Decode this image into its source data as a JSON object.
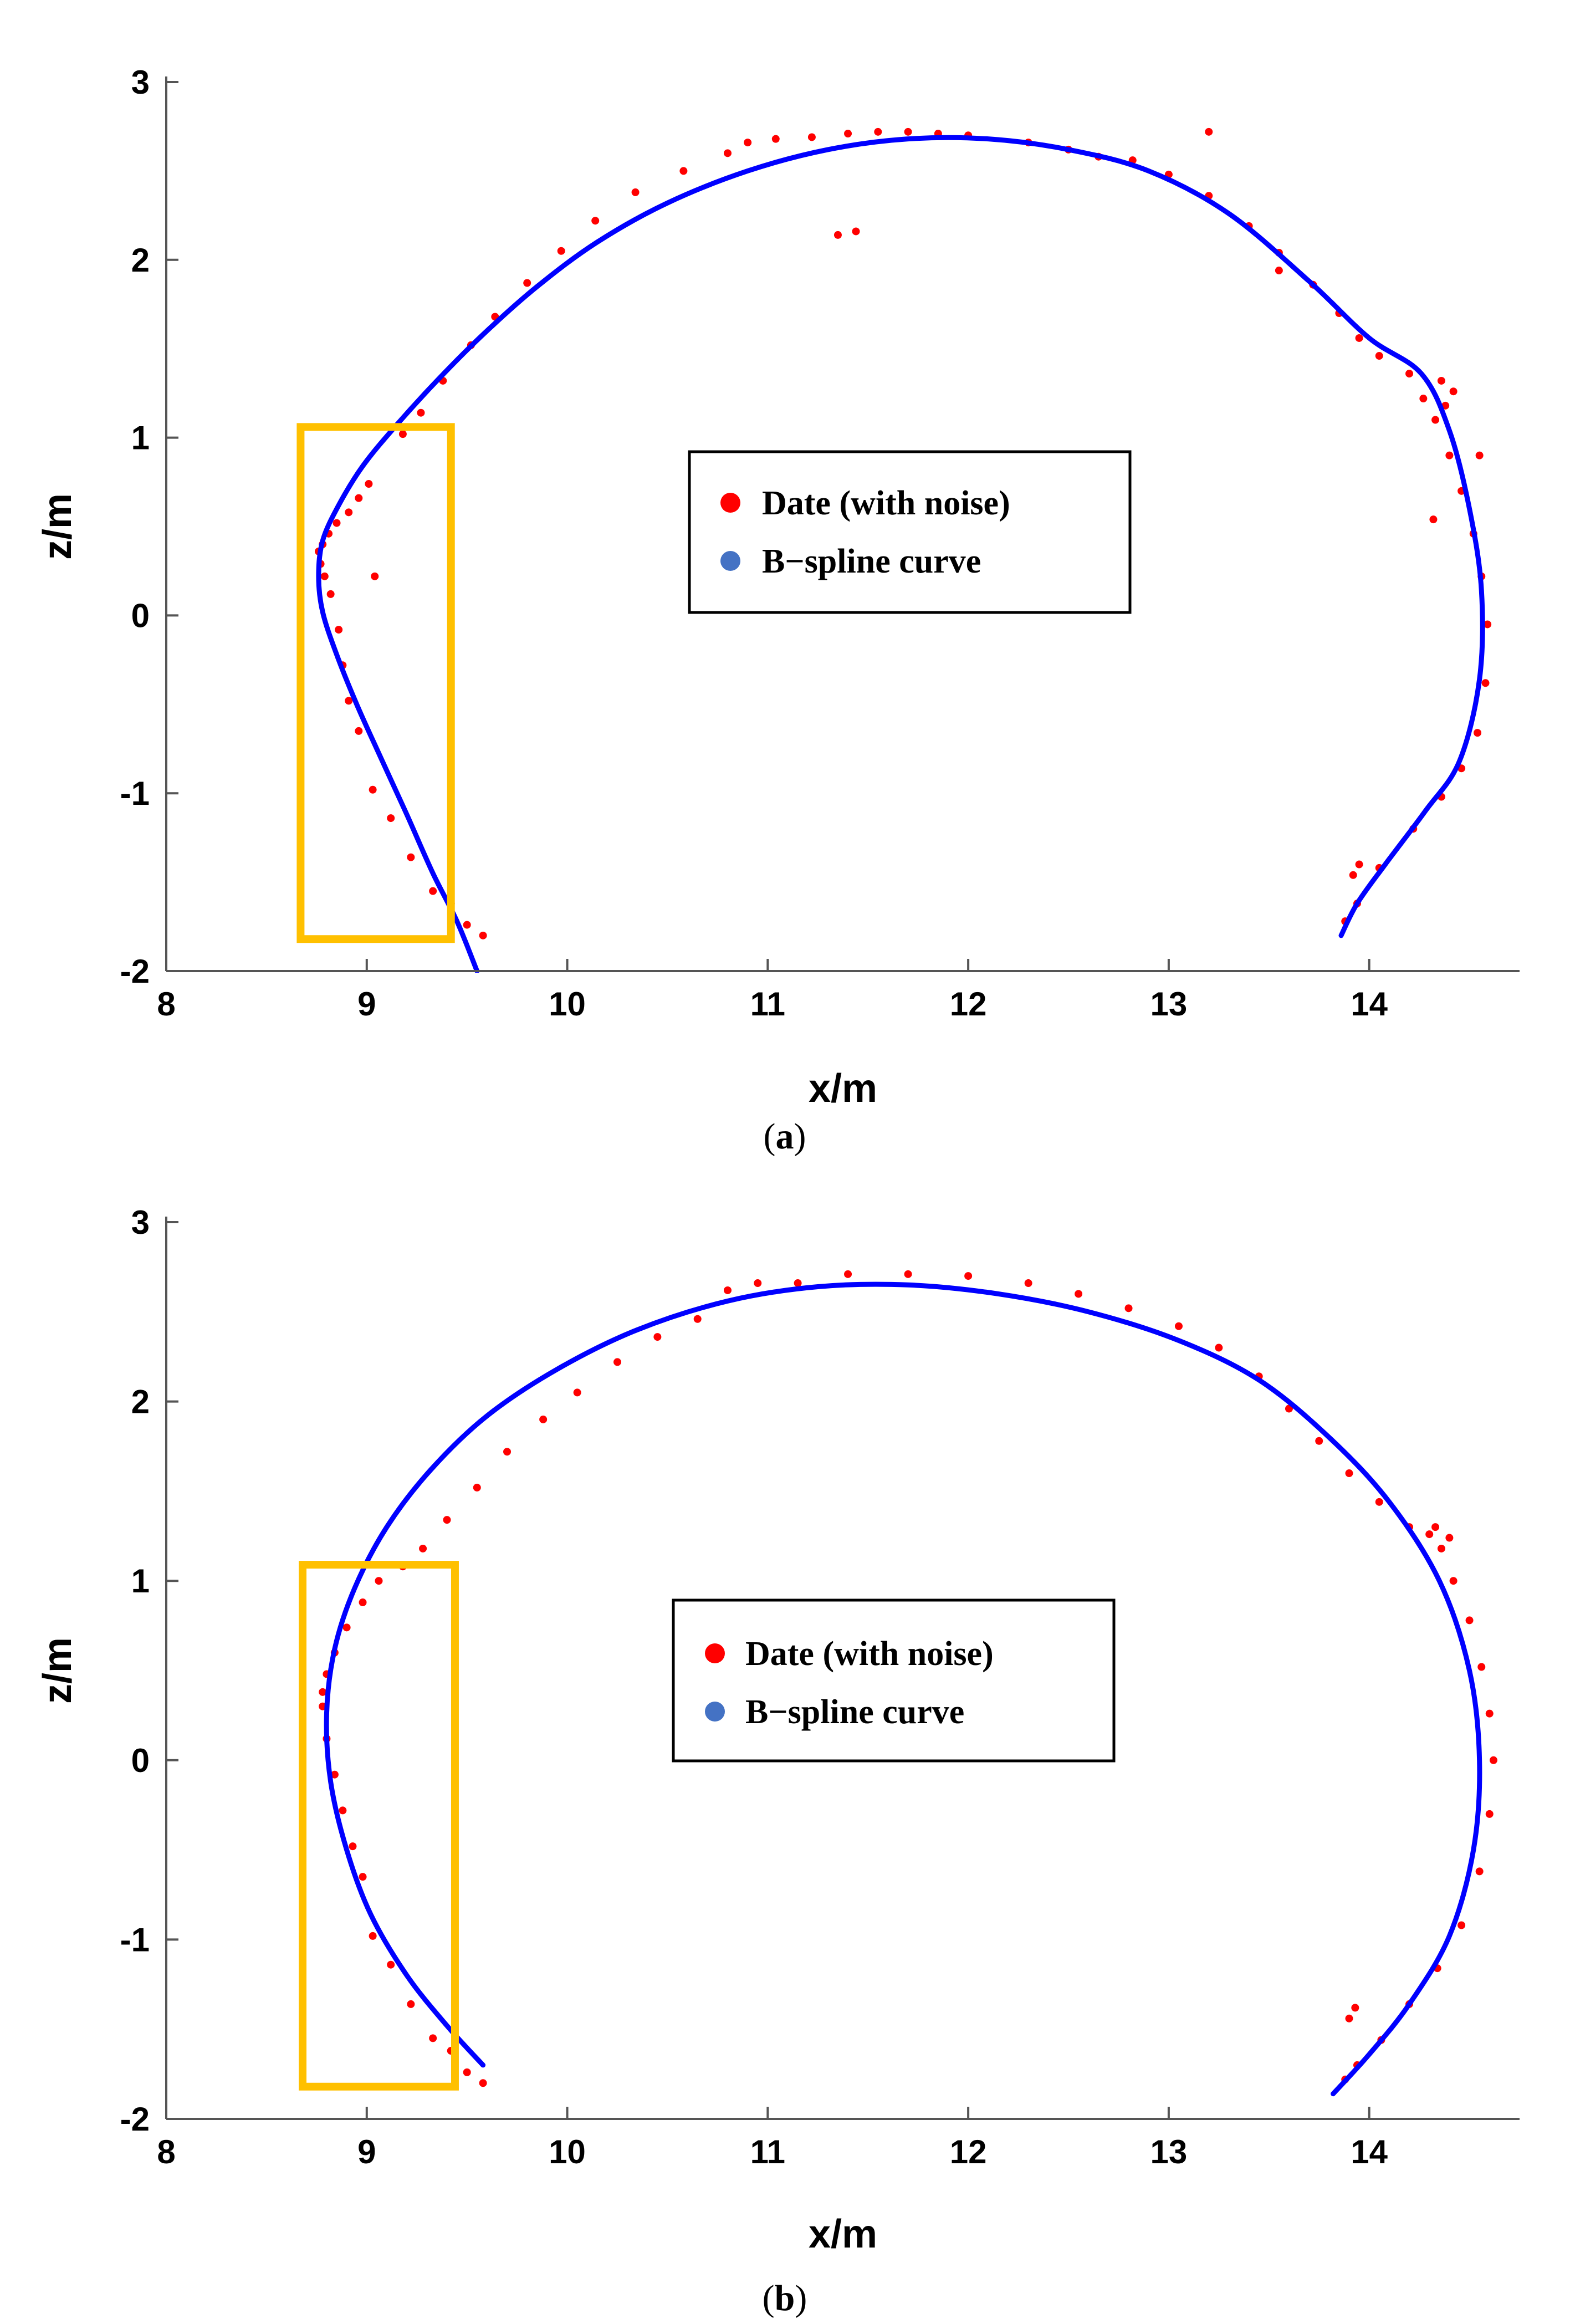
{
  "panels": [
    {
      "caption_letter": "a",
      "legend": [
        "Date (with noise)",
        "B−spline curve"
      ],
      "highlight_box": {
        "x": [
          8.67,
          9.42
        ],
        "y": [
          -1.82,
          1.06
        ],
        "color": "#FFC000"
      },
      "chart_data": {
        "type": "line",
        "xlabel": "x/m",
        "ylabel": "z/m",
        "xlim": [
          8,
          14.75
        ],
        "ylim": [
          -2,
          3
        ],
        "xticks": [
          8,
          9,
          10,
          11,
          12,
          13,
          14
        ],
        "yticks": [
          -2,
          -1,
          0,
          1,
          2,
          3
        ],
        "grid": false,
        "legend_position": "center",
        "series": [
          {
            "name": "Date (with noise)",
            "kind": "scatter",
            "color": "#FF0000",
            "points": [
              [
                9.58,
                -1.8
              ],
              [
                9.5,
                -1.74
              ],
              [
                9.42,
                -1.62
              ],
              [
                9.33,
                -1.55
              ],
              [
                9.22,
                -1.36
              ],
              [
                9.12,
                -1.14
              ],
              [
                9.03,
                -0.98
              ],
              [
                8.96,
                -0.65
              ],
              [
                8.91,
                -0.48
              ],
              [
                8.88,
                -0.28
              ],
              [
                8.86,
                -0.08
              ],
              [
                8.82,
                0.12
              ],
              [
                8.79,
                0.22
              ],
              [
                8.77,
                0.29
              ],
              [
                8.76,
                0.36
              ],
              [
                8.78,
                0.4
              ],
              [
                8.81,
                0.46
              ],
              [
                8.85,
                0.52
              ],
              [
                8.91,
                0.58
              ],
              [
                8.96,
                0.66
              ],
              [
                9.01,
                0.74
              ],
              [
                9.04,
                0.22
              ],
              [
                9.18,
                1.02
              ],
              [
                9.27,
                1.14
              ],
              [
                9.38,
                1.32
              ],
              [
                9.52,
                1.52
              ],
              [
                9.64,
                1.68
              ],
              [
                9.8,
                1.87
              ],
              [
                9.97,
                2.05
              ],
              [
                10.14,
                2.22
              ],
              [
                10.34,
                2.38
              ],
              [
                10.58,
                2.5
              ],
              [
                10.8,
                2.6
              ],
              [
                10.9,
                2.66
              ],
              [
                11.04,
                2.68
              ],
              [
                11.22,
                2.69
              ],
              [
                11.4,
                2.71
              ],
              [
                11.55,
                2.72
              ],
              [
                11.7,
                2.72
              ],
              [
                11.85,
                2.71
              ],
              [
                12.0,
                2.7
              ],
              [
                12.3,
                2.66
              ],
              [
                12.5,
                2.62
              ],
              [
                12.65,
                2.58
              ],
              [
                12.82,
                2.56
              ],
              [
                13.0,
                2.48
              ],
              [
                13.2,
                2.36
              ],
              [
                13.4,
                2.19
              ],
              [
                13.55,
                2.04
              ],
              [
                13.72,
                1.86
              ],
              [
                13.85,
                1.7
              ],
              [
                13.95,
                1.56
              ],
              [
                14.05,
                1.46
              ],
              [
                14.2,
                1.36
              ],
              [
                14.27,
                1.22
              ],
              [
                14.33,
                1.1
              ],
              [
                14.4,
                0.9
              ],
              [
                14.46,
                0.7
              ],
              [
                14.52,
                0.46
              ],
              [
                14.56,
                0.22
              ],
              [
                14.59,
                -0.05
              ],
              [
                14.58,
                -0.38
              ],
              [
                14.54,
                -0.66
              ],
              [
                14.46,
                -0.86
              ],
              [
                14.36,
                -1.02
              ],
              [
                14.22,
                -1.2
              ],
              [
                14.05,
                -1.42
              ],
              [
                13.94,
                -1.62
              ],
              [
                13.88,
                -1.72
              ],
              [
                13.95,
                -1.4
              ],
              [
                13.92,
                -1.46
              ],
              [
                11.35,
                2.14
              ],
              [
                11.44,
                2.16
              ],
              [
                13.2,
                2.72
              ],
              [
                13.55,
                1.94
              ],
              [
                14.32,
                0.54
              ],
              [
                14.36,
                1.32
              ],
              [
                14.42,
                1.26
              ],
              [
                14.38,
                1.18
              ],
              [
                14.55,
                0.9
              ]
            ]
          },
          {
            "name": "B−spline curve",
            "kind": "line",
            "color": "#0000FF",
            "points": [
              [
                9.55,
                -2.0
              ],
              [
                9.45,
                -1.72
              ],
              [
                9.33,
                -1.45
              ],
              [
                9.2,
                -1.12
              ],
              [
                9.07,
                -0.8
              ],
              [
                8.95,
                -0.5
              ],
              [
                8.85,
                -0.22
              ],
              [
                8.78,
                0.02
              ],
              [
                8.76,
                0.22
              ],
              [
                8.78,
                0.42
              ],
              [
                8.86,
                0.62
              ],
              [
                8.98,
                0.84
              ],
              [
                9.14,
                1.06
              ],
              [
                9.35,
                1.32
              ],
              [
                9.58,
                1.58
              ],
              [
                9.85,
                1.85
              ],
              [
                10.15,
                2.1
              ],
              [
                10.5,
                2.32
              ],
              [
                10.9,
                2.5
              ],
              [
                11.3,
                2.62
              ],
              [
                11.7,
                2.68
              ],
              [
                12.1,
                2.68
              ],
              [
                12.5,
                2.62
              ],
              [
                12.9,
                2.5
              ],
              [
                13.3,
                2.26
              ],
              [
                13.7,
                1.88
              ],
              [
                14.0,
                1.56
              ],
              [
                14.26,
                1.36
              ],
              [
                14.4,
                1.04
              ],
              [
                14.5,
                0.6
              ],
              [
                14.56,
                0.14
              ],
              [
                14.55,
                -0.36
              ],
              [
                14.45,
                -0.82
              ],
              [
                14.28,
                -1.1
              ],
              [
                14.08,
                -1.4
              ],
              [
                13.94,
                -1.62
              ],
              [
                13.86,
                -1.8
              ]
            ]
          }
        ]
      }
    },
    {
      "caption_letter": "b",
      "legend": [
        "Date (with noise)",
        "B−spline curve"
      ],
      "highlight_box": {
        "x": [
          8.68,
          9.44
        ],
        "y": [
          -1.82,
          1.09
        ],
        "color": "#FFC000"
      },
      "chart_data": {
        "type": "line",
        "xlabel": "x/m",
        "ylabel": "z/m",
        "xlim": [
          8,
          14.75
        ],
        "ylim": [
          -2,
          3
        ],
        "xticks": [
          8,
          9,
          10,
          11,
          12,
          13,
          14
        ],
        "yticks": [
          -2,
          -1,
          0,
          1,
          2,
          3
        ],
        "grid": false,
        "legend_position": "center",
        "series": [
          {
            "name": "Date (with noise)",
            "kind": "scatter",
            "color": "#FF0000",
            "points": [
              [
                9.58,
                -1.8
              ],
              [
                9.5,
                -1.74
              ],
              [
                9.42,
                -1.62
              ],
              [
                9.33,
                -1.55
              ],
              [
                9.22,
                -1.36
              ],
              [
                9.12,
                -1.14
              ],
              [
                9.03,
                -0.98
              ],
              [
                8.98,
                -0.65
              ],
              [
                8.93,
                -0.48
              ],
              [
                8.88,
                -0.28
              ],
              [
                8.84,
                -0.08
              ],
              [
                8.8,
                0.12
              ],
              [
                8.78,
                0.3
              ],
              [
                8.78,
                0.38
              ],
              [
                8.8,
                0.48
              ],
              [
                8.84,
                0.6
              ],
              [
                8.9,
                0.74
              ],
              [
                8.98,
                0.88
              ],
              [
                9.06,
                1.0
              ],
              [
                9.18,
                1.08
              ],
              [
                9.28,
                1.18
              ],
              [
                9.4,
                1.34
              ],
              [
                9.55,
                1.52
              ],
              [
                9.7,
                1.72
              ],
              [
                9.88,
                1.9
              ],
              [
                10.05,
                2.05
              ],
              [
                10.25,
                2.22
              ],
              [
                10.45,
                2.36
              ],
              [
                10.65,
                2.46
              ],
              [
                10.8,
                2.62
              ],
              [
                10.95,
                2.66
              ],
              [
                11.15,
                2.66
              ],
              [
                11.4,
                2.71
              ],
              [
                11.7,
                2.71
              ],
              [
                12.0,
                2.7
              ],
              [
                12.3,
                2.66
              ],
              [
                12.55,
                2.6
              ],
              [
                12.8,
                2.52
              ],
              [
                13.05,
                2.42
              ],
              [
                13.25,
                2.3
              ],
              [
                13.45,
                2.14
              ],
              [
                13.6,
                1.96
              ],
              [
                13.75,
                1.78
              ],
              [
                13.9,
                1.6
              ],
              [
                14.05,
                1.44
              ],
              [
                14.2,
                1.3
              ],
              [
                14.3,
                1.26
              ],
              [
                14.36,
                1.18
              ],
              [
                14.42,
                1.0
              ],
              [
                14.5,
                0.78
              ],
              [
                14.56,
                0.52
              ],
              [
                14.6,
                0.26
              ],
              [
                14.62,
                0.0
              ],
              [
                14.6,
                -0.3
              ],
              [
                14.55,
                -0.62
              ],
              [
                14.46,
                -0.92
              ],
              [
                14.34,
                -1.16
              ],
              [
                14.2,
                -1.36
              ],
              [
                14.06,
                -1.56
              ],
              [
                13.94,
                -1.7
              ],
              [
                13.88,
                -1.78
              ],
              [
                13.93,
                -1.38
              ],
              [
                13.9,
                -1.44
              ],
              [
                14.33,
                1.3
              ],
              [
                14.4,
                1.24
              ]
            ]
          },
          {
            "name": "B−spline curve",
            "kind": "line",
            "color": "#0000FF",
            "points": [
              [
                9.58,
                -1.7
              ],
              [
                9.4,
                -1.48
              ],
              [
                9.2,
                -1.2
              ],
              [
                9.02,
                -0.86
              ],
              [
                8.9,
                -0.5
              ],
              [
                8.82,
                -0.12
              ],
              [
                8.8,
                0.26
              ],
              [
                8.84,
                0.62
              ],
              [
                8.94,
                0.96
              ],
              [
                9.1,
                1.3
              ],
              [
                9.32,
                1.62
              ],
              [
                9.6,
                1.92
              ],
              [
                9.95,
                2.18
              ],
              [
                10.35,
                2.4
              ],
              [
                10.8,
                2.56
              ],
              [
                11.25,
                2.64
              ],
              [
                11.7,
                2.65
              ],
              [
                12.15,
                2.6
              ],
              [
                12.6,
                2.5
              ],
              [
                13.05,
                2.34
              ],
              [
                13.45,
                2.12
              ],
              [
                13.8,
                1.8
              ],
              [
                14.1,
                1.44
              ],
              [
                14.35,
                1.0
              ],
              [
                14.5,
                0.5
              ],
              [
                14.55,
                0.0
              ],
              [
                14.52,
                -0.5
              ],
              [
                14.4,
                -0.98
              ],
              [
                14.2,
                -1.36
              ],
              [
                14.0,
                -1.64
              ],
              [
                13.82,
                -1.86
              ]
            ]
          }
        ]
      }
    }
  ]
}
